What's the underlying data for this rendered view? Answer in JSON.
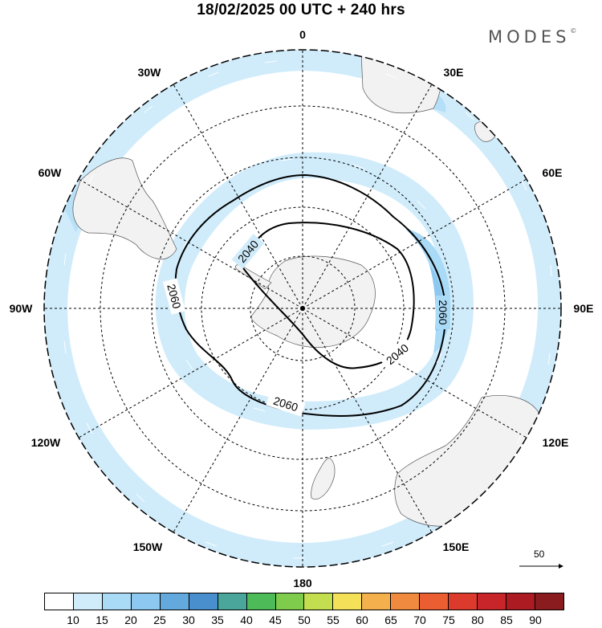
{
  "title": "18/02/2025  00 UTC  + 240 hrs",
  "brand": "MODES",
  "brand_mark": "©",
  "longitude_labels": {
    "l0": "0",
    "l30e": "30E",
    "l60e": "60E",
    "l90e": "90E",
    "l120e": "120E",
    "l150e": "150E",
    "l180": "180",
    "l150w": "150W",
    "l120w": "120W",
    "l90w": "90W",
    "l60w": "60W",
    "l30w": "30W"
  },
  "contour_labels": {
    "c2040a": "2040",
    "c2040b": "2040",
    "c2060a": "2060",
    "c2060b": "2060",
    "c2060c": "2060"
  },
  "colors": {
    "land": "#f2f2f2",
    "wind_light": "#d0ecfb",
    "wind_mid": "#a9daf6",
    "wind_strong": "#8cc8f0"
  },
  "colorbar": {
    "colors": [
      "#ffffff",
      "#d0ecfb",
      "#a9daf6",
      "#8cc8f0",
      "#63a9dd",
      "#4a8fcd",
      "#4aa59a",
      "#4dbb57",
      "#7fcc4d",
      "#c3de4e",
      "#f5e05a",
      "#f3b04c",
      "#f08a3e",
      "#ea5e32",
      "#dd3a2e",
      "#c8252a",
      "#ac1a22",
      "#8a1c1f"
    ],
    "ticks": [
      "10",
      "15",
      "20",
      "25",
      "30",
      "35",
      "40",
      "45",
      "50",
      "55",
      "60",
      "65",
      "70",
      "75",
      "80",
      "85",
      "90"
    ]
  },
  "reference_vector": {
    "label": "50"
  }
}
